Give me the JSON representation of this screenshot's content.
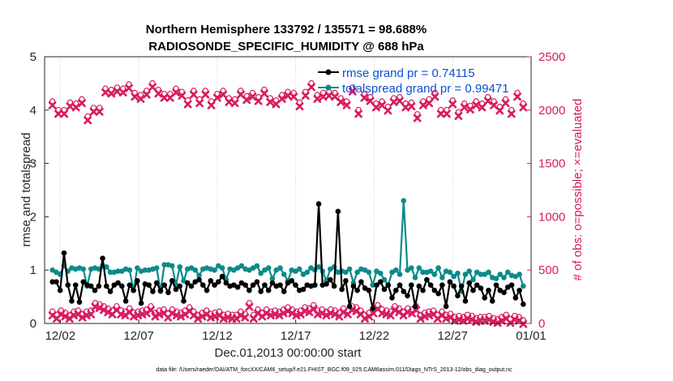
{
  "chart_data": {
    "type": "line",
    "title_line1": "Northern Hemisphere 133792 / 135571 = 98.688%",
    "title_line2": "RADIOSONDE_SPECIFIC_HUMIDITY @ 688 hPa",
    "xlabel": "Dec.01,2013 00:00:00 start",
    "ylabel_left": "rmse and totalspread",
    "ylabel_right": "# of obs: o=possible; ×=evaluated",
    "footnote": "data file: /Users/raeder/DAI/ATM_forcXX/CAM6_setup/f.e21.FHIST_BGC.f09_025.CAM6assim.011/Diags_NTrS_2013-12/obs_diag_output.nc",
    "xlim": [
      0.5,
      31.5
    ],
    "ylim_left": [
      0,
      5
    ],
    "ylim_right": [
      0,
      2500
    ],
    "x_ticks": [
      1.5,
      6.5,
      11.5,
      16.5,
      21.5,
      26.5,
      31.5
    ],
    "x_tick_labels": [
      "12/02",
      "12/07",
      "12/12",
      "12/17",
      "12/22",
      "12/27",
      "01/01"
    ],
    "y_left_ticks": [
      0,
      1,
      2,
      3,
      4,
      5
    ],
    "y_left_tick_labels": [
      "0",
      "1",
      "2",
      "3",
      "4",
      "5"
    ],
    "y_right_ticks": [
      0,
      500,
      1000,
      1500,
      2000,
      2500
    ],
    "y_right_tick_labels": [
      "0",
      "500",
      "1000",
      "1500",
      "2000",
      "2500"
    ],
    "grid": "x-dotted",
    "legend_position": "top-right",
    "colors": {
      "rmse": "#000000",
      "spread": "#0c8a8a",
      "obs": "#d81b60",
      "legend_text": "#0b4fd6"
    },
    "series": [
      {
        "name": "rmse grand pr = 0.74115",
        "key": "rmse",
        "axis": "left",
        "values": [
          0.78,
          0.78,
          0.62,
          1.32,
          0.72,
          0.42,
          0.72,
          0.4,
          0.78,
          0.72,
          0.7,
          0.62,
          0.7,
          1.22,
          0.7,
          0.6,
          0.72,
          0.76,
          0.7,
          0.42,
          0.72,
          0.62,
          0.8,
          0.38,
          0.74,
          0.72,
          0.6,
          0.76,
          0.62,
          0.72,
          0.58,
          0.8,
          0.64,
          0.7,
          0.42,
          0.76,
          0.7,
          0.78,
          0.82,
          0.72,
          0.62,
          0.8,
          0.72,
          0.78,
          0.88,
          0.76,
          0.7,
          0.72,
          0.68,
          0.76,
          0.72,
          0.62,
          0.72,
          0.78,
          0.6,
          0.72,
          0.62,
          0.76,
          0.7,
          0.72,
          0.6,
          0.76,
          0.8,
          0.72,
          0.62,
          0.64,
          0.72,
          0.7,
          0.72,
          2.24,
          0.72,
          0.74,
          0.82,
          0.7,
          2.1,
          0.64,
          0.8,
          0.32,
          0.7,
          0.62,
          0.78,
          0.66,
          0.62,
          0.28,
          0.72,
          0.78,
          0.64,
          0.72,
          0.48,
          0.62,
          0.72,
          0.6,
          0.52,
          0.72,
          0.32,
          0.7,
          0.62,
          0.82,
          0.72,
          0.62,
          0.56,
          0.72,
          0.32,
          0.78,
          0.7,
          0.52,
          0.7,
          0.42,
          0.76,
          0.62,
          0.72,
          0.66,
          0.48,
          0.62,
          0.42,
          0.72,
          0.62,
          0.58,
          0.68,
          0.72,
          0.48,
          0.62,
          0.36
        ]
      },
      {
        "name": "totalspread grand pr = 0.99471",
        "key": "spread",
        "axis": "left",
        "values": [
          1.0,
          0.96,
          0.92,
          1.08,
          0.98,
          1.04,
          1.02,
          1.04,
          1.02,
          0.7,
          1.02,
          1.04,
          1.02,
          1.08,
          1.06,
          0.96,
          0.96,
          0.98,
          0.98,
          1.02,
          1.0,
          0.62,
          1.04,
          0.98,
          1.0,
          1.0,
          1.02,
          1.04,
          0.6,
          1.1,
          1.1,
          1.08,
          0.72,
          1.06,
          0.8,
          1.02,
          1.04,
          1.0,
          0.9,
          1.02,
          1.04,
          1.02,
          1.0,
          1.08,
          1.04,
          0.82,
          1.02,
          1.0,
          1.04,
          1.08,
          1.02,
          1.0,
          1.04,
          1.08,
          0.94,
          1.0,
          1.04,
          0.84,
          1.0,
          1.04,
          0.92,
          0.8,
          1.0,
          0.98,
          1.02,
          0.92,
          0.96,
          1.04,
          1.0,
          1.06,
          0.98,
          0.8,
          1.02,
          1.06,
          0.96,
          0.98,
          0.96,
          1.02,
          0.76,
          0.96,
          1.02,
          1.0,
          0.96,
          0.72,
          0.98,
          0.94,
          0.82,
          0.72,
          0.96,
          1.0,
          0.92,
          2.3,
          1.0,
          1.04,
          0.86,
          1.04,
          0.96,
          0.96,
          0.98,
          0.92,
          1.04,
          0.86,
          0.98,
          0.96,
          0.88,
          0.94,
          0.6,
          0.92,
          0.98,
          0.82,
          0.96,
          0.92,
          0.92,
          0.96,
          0.86,
          0.84,
          0.92,
          0.86,
          0.96,
          0.9,
          0.88,
          0.92,
          0.7
        ]
      },
      {
        "name": "# of obs",
        "key": "obs",
        "axis": "right",
        "markers": [
          "o",
          "x"
        ],
        "values": [
          2060,
          1980,
          1980,
          2050,
          2040,
          2080,
          1920,
          2000,
          2000,
          2180,
          2170,
          2190,
          2180,
          2220,
          2140,
          2120,
          2160,
          2230,
          2170,
          2130,
          2130,
          2180,
          2150,
          2070,
          2160,
          2080,
          2160,
          2060,
          2130,
          2160,
          2090,
          2080,
          2160,
          2110,
          2140,
          2100,
          2170,
          2090,
          2070,
          2120,
          2150,
          2140,
          2050,
          2150,
          2230,
          2120,
          2140,
          2150,
          2140,
          2090,
          2060,
          2190,
          1980,
          2130,
          2100,
          2040,
          2060,
          2010,
          2090,
          2100,
          2040,
          2050,
          1940,
          2060,
          2080,
          2140,
          1980,
          1980,
          2070,
          1960,
          2040,
          2020,
          2060,
          2040,
          2100,
          2060,
          2010,
          2080,
          1980,
          2140,
          2040
        ]
      },
      {
        "name": "# of obs (low)",
        "key": "obs_low",
        "axis": "right",
        "markers": [
          "o",
          "x"
        ],
        "values": [
          90,
          60,
          100,
          80,
          60,
          90,
          100,
          70,
          90,
          100,
          170,
          160,
          140,
          120,
          100,
          140,
          100,
          90,
          120,
          80,
          90,
          100,
          110,
          140,
          80,
          100,
          110,
          70,
          110,
          90,
          80,
          100,
          130,
          90,
          60,
          80,
          100,
          70,
          80,
          90,
          60,
          70,
          60,
          60,
          90,
          70,
          170,
          60,
          110,
          80,
          110,
          90,
          100,
          90,
          110,
          130,
          110,
          90,
          100,
          130,
          120,
          150,
          100,
          110,
          90,
          110,
          100,
          80,
          120,
          100,
          140,
          130,
          100,
          60,
          80,
          110,
          150,
          110,
          100,
          90,
          140,
          120,
          90,
          120,
          110,
          140,
          60,
          80,
          90,
          100,
          60,
          90,
          60,
          70,
          40,
          50,
          40,
          60,
          50,
          30,
          40,
          40,
          50,
          30,
          20,
          40,
          60,
          20,
          50,
          40,
          10
        ]
      }
    ]
  }
}
